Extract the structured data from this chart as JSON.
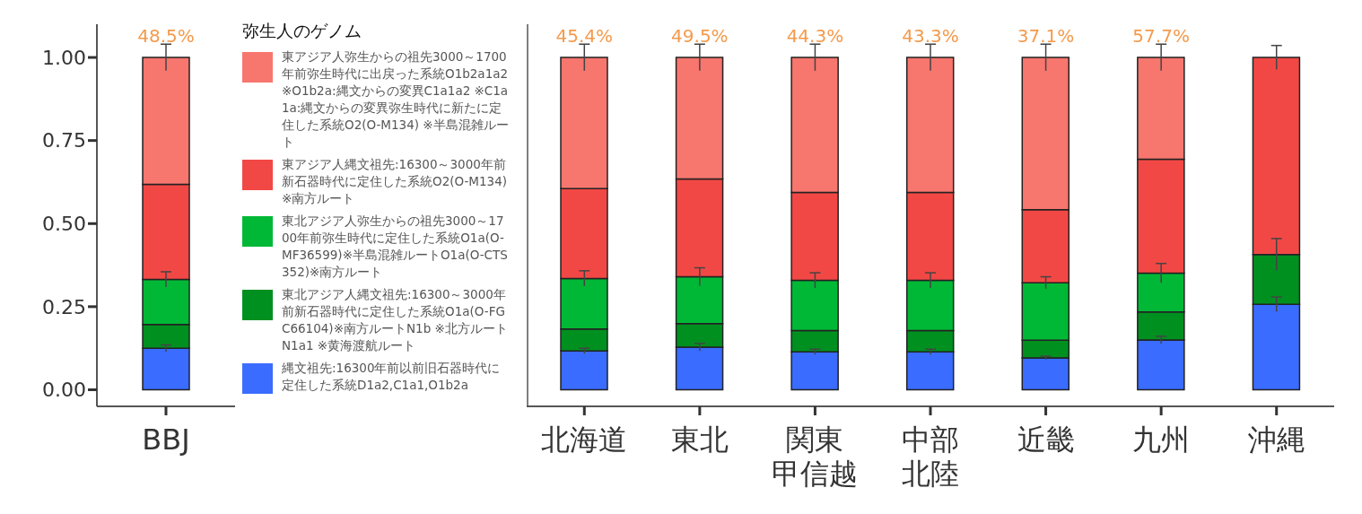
{
  "chart_data": [
    {
      "type": "bar",
      "stacked": true,
      "legend": "right",
      "legend_title": "弥生人のゲノム",
      "categories": [
        "BBJ"
      ],
      "ylim": [
        -0.05,
        1.1
      ],
      "yticks": [
        {
          "value": 0,
          "label": "0.00"
        },
        {
          "value": 0.25,
          "label": "0.25"
        },
        {
          "value": 0.5,
          "label": "0.50"
        },
        {
          "value": 0.75,
          "label": "0.75"
        },
        {
          "value": 1,
          "label": "1.00"
        }
      ],
      "series": [
        {
          "name": "縄文祖先:16300年前以前旧石器時代に定住した系統D1a2,C1a1,O1b2a",
          "color": "#3a6cff",
          "values": [
            0.125
          ],
          "errors": [
            0.01
          ]
        },
        {
          "name": "東北アジア人縄文祖先:16300～3000年前新石器時代に定住した系統O1a(O-FGC66104)※南方ルートN1b ※北方ルートN1a1 ※黄海渡航ルート",
          "color": "#009020",
          "values": [
            0.071
          ]
        },
        {
          "name": "東北アジア人弥生からの祖先3000～1700年前弥生時代に定住した系統O1a(O-MF36599)※半島混雑ルートO1a(O-CTS352)※南方ルート",
          "color": "#00b836",
          "values": [
            0.136
          ],
          "errors": [
            0.023
          ]
        },
        {
          "name": "東アジア人縄文祖先:16300～3000年前新石器時代に定住した系統O2(O-M134) ※南方ルート",
          "color": "#f24845",
          "values": [
            0.286
          ]
        },
        {
          "name": "東アジア人弥生からの祖先3000～1700年前弥生時代に出戻った系統O1b2a1a2 ※O1b2a:縄文からの変異C1a1a2 ※C1a1a:縄文からの変異弥生時代に新たに定住した系統O2(O-M134) ※半島混雑ルート",
          "color": "#f7766e",
          "values": [
            0.382
          ],
          "errors": [
            0.04
          ]
        }
      ],
      "annotations": [
        {
          "text": "48.5%",
          "x": "BBJ",
          "y": 1.0
        }
      ]
    },
    {
      "type": "bar",
      "stacked": true,
      "tick_labels": "x",
      "categories": [
        "北海道",
        "東北",
        "関東甲信越",
        "中部北陸",
        "近畿",
        "九州",
        "沖縄"
      ],
      "ylim": [
        -0.05,
        1.1
      ],
      "series": [
        {
          "color": "#3a6cff",
          "values": [
            0.117,
            0.128,
            0.114,
            0.114,
            0.096,
            0.15,
            0.257
          ],
          "errors": [
            0.008,
            0.011,
            0.008,
            0.008,
            0.005,
            0.011,
            0.022
          ]
        },
        {
          "color": "#009020",
          "values": [
            0.066,
            0.071,
            0.064,
            0.064,
            0.053,
            0.084,
            0.15
          ],
          "errors": [
            null,
            null,
            null,
            null,
            null,
            null,
            0.048
          ]
        },
        {
          "color": "#00b836",
          "values": [
            0.152,
            0.141,
            0.151,
            0.151,
            0.173,
            0.117,
            null
          ],
          "errors": [
            0.023,
            0.027,
            0.023,
            0.023,
            0.018,
            0.029,
            null
          ]
        },
        {
          "color": "#f24845",
          "values": [
            0.27,
            0.294,
            0.265,
            0.265,
            0.22,
            0.343,
            0.593
          ],
          "errors": [
            null,
            null,
            null,
            null,
            null,
            null,
            0.036
          ]
        },
        {
          "color": "#f7766e",
          "values": [
            0.395,
            0.366,
            0.406,
            0.406,
            0.458,
            0.306,
            null
          ],
          "errors": [
            0.04,
            0.04,
            0.04,
            0.04,
            0.04,
            0.04,
            null
          ]
        }
      ],
      "annotations": [
        {
          "text": "45.4%",
          "x": "北海道",
          "y": 1.0
        },
        {
          "text": "49.5%",
          "x": "東北",
          "y": 1.0
        },
        {
          "text": "44.3%",
          "x": "関東甲信越",
          "y": 1.0
        },
        {
          "text": "43.3%",
          "x": "中部北陸",
          "y": 1.0
        },
        {
          "text": "37.1%",
          "x": "近畿",
          "y": 1.0
        },
        {
          "text": "57.7%",
          "x": "九州",
          "y": 1.0
        }
      ]
    }
  ]
}
